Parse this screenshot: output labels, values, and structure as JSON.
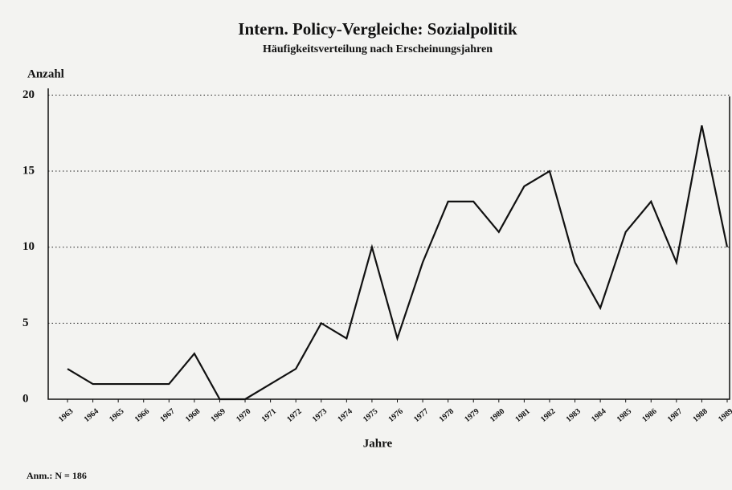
{
  "chart_data": {
    "type": "line",
    "title": "Intern. Policy-Vergleiche: Sozialpolitik",
    "subtitle": "Häufigkeitsverteilung nach Erscheinungsjahren",
    "y_label": "Anzahl",
    "x_label": "Jahre",
    "note": "Anm.: N = 186",
    "categories": [
      "1963",
      "1964",
      "1965",
      "1966",
      "1967",
      "1968",
      "1969",
      "1970",
      "1971",
      "1972",
      "1973",
      "1974",
      "1975",
      "1976",
      "1977",
      "1978",
      "1979",
      "1980",
      "1981",
      "1982",
      "1983",
      "1984",
      "1985",
      "1986",
      "1987",
      "1988",
      "1989"
    ],
    "values": [
      2,
      1,
      1,
      1,
      1,
      3,
      0,
      0,
      1,
      2,
      5,
      4,
      10,
      4,
      9,
      13,
      13,
      11,
      14,
      15,
      9,
      6,
      11,
      13,
      9,
      18,
      10
    ],
    "color": "#111111",
    "ylim": [
      0,
      21.5
    ],
    "yticks": [
      0,
      5,
      10,
      15,
      20
    ],
    "grid": true
  }
}
